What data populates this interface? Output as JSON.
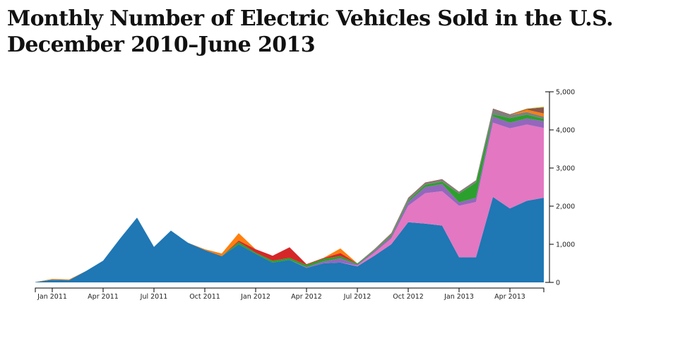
{
  "chart_data": {
    "type": "area",
    "stacked": true,
    "title": "Monthly Number of Electric Vehicles Sold in the U.S.",
    "subtitle": "December 2010–June 2013",
    "xlabel": "",
    "ylabel": "",
    "ylim": [
      0,
      5000
    ],
    "y_ticks": [
      {
        "value": 0,
        "label": "0"
      },
      {
        "value": 1000,
        "label": "1,000"
      },
      {
        "value": 2000,
        "label": "2,000"
      },
      {
        "value": 3000,
        "label": "3,000"
      },
      {
        "value": 4000,
        "label": "4,000"
      },
      {
        "value": 5000,
        "label": "5,000"
      }
    ],
    "x_ticks": [
      {
        "index": 1,
        "label": "Jan 2011"
      },
      {
        "index": 4,
        "label": "Apr 2011"
      },
      {
        "index": 7,
        "label": "Jul 2011"
      },
      {
        "index": 10,
        "label": "Oct 2011"
      },
      {
        "index": 13,
        "label": "Jan 2012"
      },
      {
        "index": 16,
        "label": "Apr 2012"
      },
      {
        "index": 19,
        "label": "Jul 2012"
      },
      {
        "index": 22,
        "label": "Oct 2012"
      },
      {
        "index": 25,
        "label": "Jan 2013"
      },
      {
        "index": 28,
        "label": "Apr 2013"
      }
    ],
    "y_axis_position": "right",
    "legend": "none",
    "grid": false,
    "x": [
      "Dec 2010",
      "Jan 2011",
      "Feb 2011",
      "Mar 2011",
      "Apr 2011",
      "May 2011",
      "Jun 2011",
      "Jul 2011",
      "Aug 2011",
      "Sep 2011",
      "Oct 2011",
      "Nov 2011",
      "Dec 2011",
      "Jan 2012",
      "Feb 2012",
      "Mar 2012",
      "Apr 2012",
      "May 2012",
      "Jun 2012",
      "Jul 2012",
      "Aug 2012",
      "Sep 2012",
      "Oct 2012",
      "Nov 2012",
      "Dec 2012",
      "Jan 2013",
      "Feb 2013",
      "Mar 2013",
      "Apr 2013",
      "May 2013",
      "Jun 2013"
    ],
    "series": [
      {
        "name": "series-blue",
        "color": "#1f77b4",
        "values": [
          10,
          70,
          60,
          300,
          570,
          1150,
          1700,
          930,
          1360,
          1040,
          850,
          690,
          1000,
          750,
          520,
          590,
          380,
          500,
          520,
          420,
          700,
          1000,
          1580,
          1540,
          1490,
          660,
          660,
          2240,
          1940,
          2140,
          2220
        ]
      },
      {
        "name": "series-pink",
        "color": "#e377c2",
        "values": [
          0,
          0,
          0,
          0,
          0,
          0,
          0,
          0,
          0,
          0,
          0,
          0,
          0,
          0,
          0,
          0,
          0,
          0,
          0,
          20,
          80,
          150,
          430,
          800,
          900,
          1350,
          1450,
          1950,
          2100,
          2000,
          1830
        ]
      },
      {
        "name": "series-purple",
        "color": "#9467bd",
        "values": [
          0,
          0,
          0,
          0,
          0,
          0,
          0,
          0,
          0,
          0,
          0,
          0,
          0,
          0,
          0,
          0,
          20,
          50,
          110,
          30,
          40,
          60,
          100,
          160,
          190,
          90,
          110,
          160,
          150,
          160,
          180
        ]
      },
      {
        "name": "series-green",
        "color": "#2ca02c",
        "values": [
          0,
          0,
          0,
          0,
          0,
          0,
          0,
          0,
          0,
          0,
          0,
          0,
          60,
          30,
          50,
          50,
          60,
          70,
          60,
          30,
          20,
          30,
          40,
          60,
          60,
          230,
          400,
          60,
          120,
          100,
          60
        ]
      },
      {
        "name": "series-red",
        "color": "#d62728",
        "values": [
          0,
          0,
          0,
          0,
          0,
          0,
          0,
          0,
          0,
          0,
          0,
          0,
          40,
          90,
          130,
          280,
          20,
          20,
          80,
          0,
          0,
          0,
          0,
          0,
          0,
          0,
          0,
          0,
          0,
          0,
          0
        ]
      },
      {
        "name": "series-gray",
        "color": "#7f7f7f",
        "values": [
          0,
          0,
          0,
          0,
          0,
          0,
          0,
          0,
          0,
          0,
          0,
          0,
          0,
          0,
          0,
          0,
          0,
          0,
          0,
          0,
          20,
          30,
          50,
          40,
          50,
          40,
          50,
          130,
          80,
          70,
          60
        ]
      },
      {
        "name": "series-orange",
        "color": "#ff7f0e",
        "values": [
          0,
          20,
          20,
          0,
          0,
          0,
          0,
          0,
          0,
          0,
          20,
          70,
          190,
          0,
          0,
          0,
          0,
          0,
          120,
          0,
          0,
          0,
          0,
          0,
          0,
          0,
          0,
          0,
          0,
          60,
          80
        ]
      },
      {
        "name": "series-brown",
        "color": "#8c564b",
        "values": [
          0,
          0,
          0,
          0,
          0,
          0,
          0,
          0,
          0,
          0,
          0,
          0,
          0,
          0,
          0,
          0,
          0,
          0,
          0,
          0,
          10,
          20,
          20,
          20,
          20,
          10,
          10,
          20,
          20,
          20,
          160
        ]
      },
      {
        "name": "series-olive",
        "color": "#bcbd22",
        "values": [
          0,
          0,
          0,
          0,
          0,
          0,
          0,
          0,
          0,
          0,
          0,
          0,
          0,
          0,
          0,
          0,
          0,
          0,
          0,
          0,
          0,
          0,
          0,
          0,
          0,
          0,
          0,
          0,
          0,
          10,
          20
        ]
      }
    ]
  }
}
